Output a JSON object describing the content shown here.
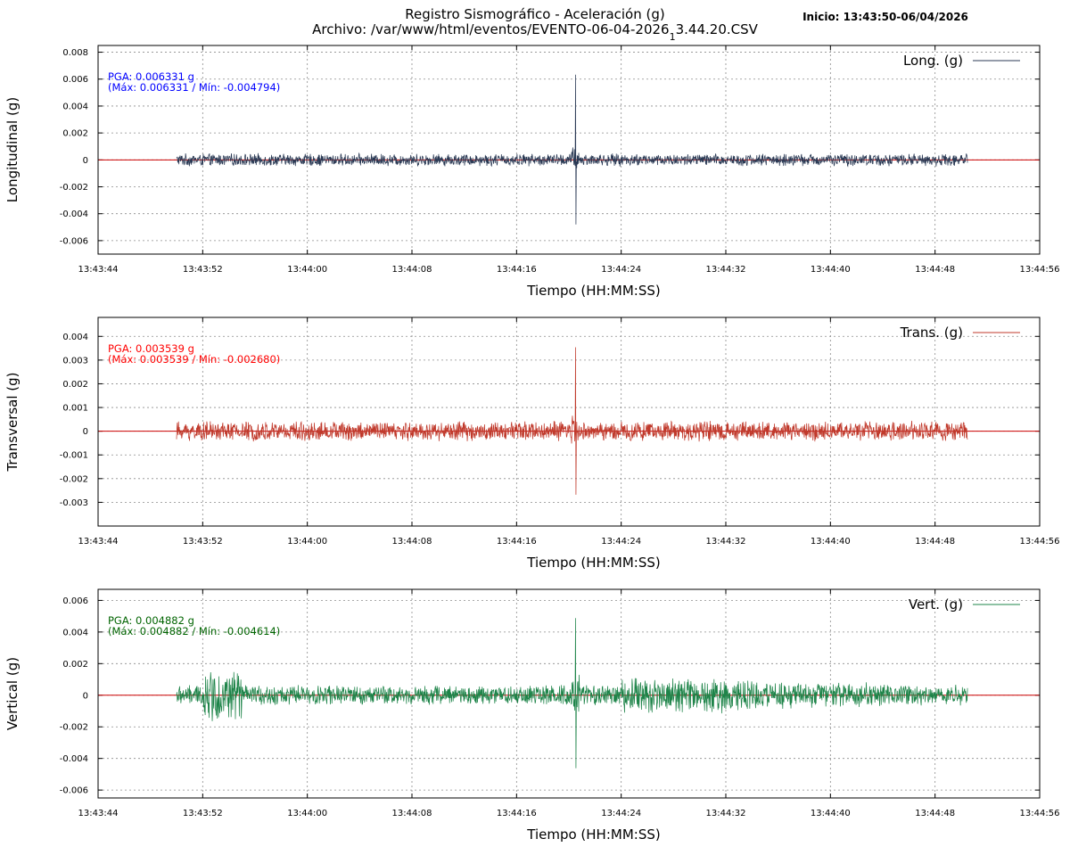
{
  "header": {
    "title_line1": "Registro Sismográfico - Aceleración (g)",
    "title_line2_prefix": "Archivo: /var/www/html/eventos/EVENTO-06-04-2026",
    "title_line2_sub": "1",
    "title_line2_suffix": "3.44.20.CSV",
    "start_label": "Inicio: 13:43:50-06/04/2026"
  },
  "chart_data": [
    {
      "type": "line",
      "xlabel": "Tiempo (HH:MM:SS)",
      "ylabel": "Longitudinal (g)",
      "legend": "Long. (g)",
      "legend_position": "top-right",
      "pga_label": "PGA: 0.006331 g",
      "range_label": "(Máx: 0.006331 / Mín: -0.004794)",
      "max": 0.006331,
      "min": -0.004794,
      "ylim": [
        -0.007,
        0.0085
      ],
      "yticks": [
        0.008,
        0.006,
        0.004,
        0.002,
        0,
        -0.002,
        -0.004,
        -0.006
      ],
      "ytick_labels": [
        "0.008",
        "0.006",
        "0.004",
        "0.002",
        "0",
        "-0.002",
        "-0.004",
        "-0.006"
      ],
      "xlim": [
        "13:43:44",
        "13:44:56"
      ],
      "xticks": [
        "13:43:44",
        "13:43:52",
        "13:44:00",
        "13:44:08",
        "13:44:16",
        "13:44:24",
        "13:44:32",
        "13:44:40",
        "13:44:48",
        "13:44:56"
      ],
      "signal_range": [
        "13:43:50",
        "13:44:50.5"
      ],
      "spike_time": "13:44:20.5",
      "noise_amplitude": 0.0005,
      "grid": true,
      "color": "#2b3a55",
      "label_color": "#0000ff",
      "zero_line_color": "#cc0000"
    },
    {
      "type": "line",
      "xlabel": "Tiempo (HH:MM:SS)",
      "ylabel": "Transversal (g)",
      "legend": "Trans. (g)",
      "legend_position": "top-right",
      "pga_label": "PGA: 0.003539 g",
      "range_label": "(Máx: 0.003539 / Mín: -0.002680)",
      "max": 0.003539,
      "min": -0.00268,
      "ylim": [
        -0.004,
        0.0048
      ],
      "yticks": [
        0.004,
        0.003,
        0.002,
        0.001,
        0,
        -0.001,
        -0.002,
        -0.003
      ],
      "ytick_labels": [
        "0.004",
        "0.003",
        "0.002",
        "0.001",
        "0",
        "-0.001",
        "-0.002",
        "-0.003"
      ],
      "xlim": [
        "13:43:44",
        "13:44:56"
      ],
      "xticks": [
        "13:43:44",
        "13:43:52",
        "13:44:00",
        "13:44:08",
        "13:44:16",
        "13:44:24",
        "13:44:32",
        "13:44:40",
        "13:44:48",
        "13:44:56"
      ],
      "signal_range": [
        "13:43:50",
        "13:44:50.5"
      ],
      "spike_time": "13:44:20.5",
      "noise_amplitude": 0.00045,
      "grid": true,
      "color": "#c0392b",
      "label_color": "#ff0000",
      "zero_line_color": "#cc0000"
    },
    {
      "type": "line",
      "xlabel": "Tiempo (HH:MM:SS)",
      "ylabel": "Vertical (g)",
      "legend": "Vert. (g)",
      "legend_position": "top-right",
      "pga_label": "PGA: 0.004882 g",
      "range_label": "(Máx: 0.004882 / Mín: -0.004614)",
      "max": 0.004882,
      "min": -0.004614,
      "ylim": [
        -0.0065,
        0.0067
      ],
      "yticks": [
        0.006,
        0.004,
        0.002,
        0,
        -0.002,
        -0.004,
        -0.006
      ],
      "ytick_labels": [
        "0.006",
        "0.004",
        "0.002",
        "0",
        "-0.002",
        "-0.004",
        "-0.006"
      ],
      "xlim": [
        "13:43:44",
        "13:44:56"
      ],
      "xticks": [
        "13:43:44",
        "13:43:52",
        "13:44:00",
        "13:44:08",
        "13:44:16",
        "13:44:24",
        "13:44:32",
        "13:44:40",
        "13:44:48",
        "13:44:56"
      ],
      "signal_range": [
        "13:43:50",
        "13:44:50.5"
      ],
      "spike_time": "13:44:20.5",
      "noise_amplitude": 0.0008,
      "grid": true,
      "color": "#1e8449",
      "label_color": "#006400",
      "zero_line_color": "#cc0000"
    }
  ]
}
